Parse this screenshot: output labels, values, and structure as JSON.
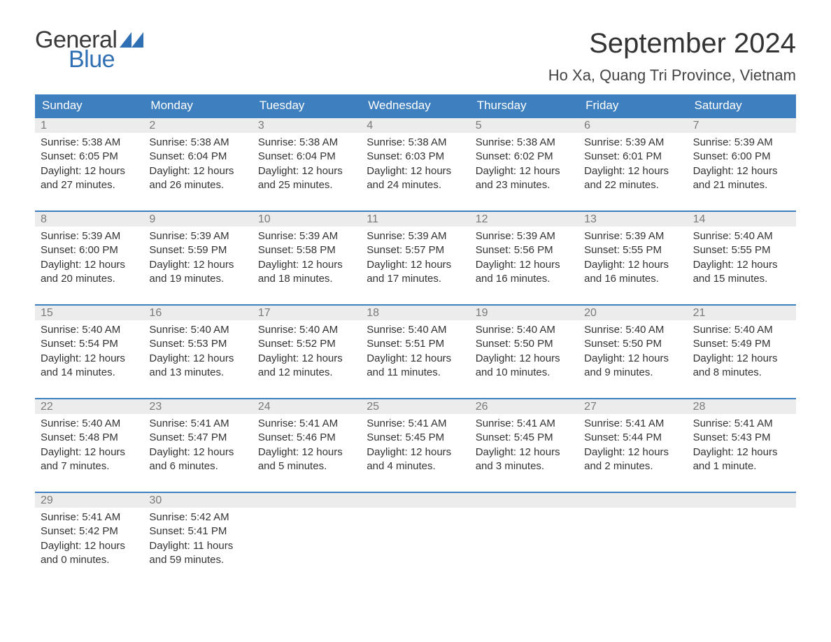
{
  "logo": {
    "text1": "General",
    "text2": "Blue",
    "flag_color": "#2f6fb3"
  },
  "header": {
    "title": "September 2024",
    "location": "Ho Xa, Quang Tri Province, Vietnam"
  },
  "colors": {
    "header_bg": "#3e7fbf",
    "daynum_bg": "#ececec",
    "week_border": "#3e7fbf",
    "text": "#333333",
    "daynum_text": "#7a7a7a"
  },
  "days_of_week": [
    "Sunday",
    "Monday",
    "Tuesday",
    "Wednesday",
    "Thursday",
    "Friday",
    "Saturday"
  ],
  "weeks": [
    [
      {
        "n": "1",
        "sunrise": "5:38 AM",
        "sunset": "6:05 PM",
        "dl": "12 hours and 27 minutes."
      },
      {
        "n": "2",
        "sunrise": "5:38 AM",
        "sunset": "6:04 PM",
        "dl": "12 hours and 26 minutes."
      },
      {
        "n": "3",
        "sunrise": "5:38 AM",
        "sunset": "6:04 PM",
        "dl": "12 hours and 25 minutes."
      },
      {
        "n": "4",
        "sunrise": "5:38 AM",
        "sunset": "6:03 PM",
        "dl": "12 hours and 24 minutes."
      },
      {
        "n": "5",
        "sunrise": "5:38 AM",
        "sunset": "6:02 PM",
        "dl": "12 hours and 23 minutes."
      },
      {
        "n": "6",
        "sunrise": "5:39 AM",
        "sunset": "6:01 PM",
        "dl": "12 hours and 22 minutes."
      },
      {
        "n": "7",
        "sunrise": "5:39 AM",
        "sunset": "6:00 PM",
        "dl": "12 hours and 21 minutes."
      }
    ],
    [
      {
        "n": "8",
        "sunrise": "5:39 AM",
        "sunset": "6:00 PM",
        "dl": "12 hours and 20 minutes."
      },
      {
        "n": "9",
        "sunrise": "5:39 AM",
        "sunset": "5:59 PM",
        "dl": "12 hours and 19 minutes."
      },
      {
        "n": "10",
        "sunrise": "5:39 AM",
        "sunset": "5:58 PM",
        "dl": "12 hours and 18 minutes."
      },
      {
        "n": "11",
        "sunrise": "5:39 AM",
        "sunset": "5:57 PM",
        "dl": "12 hours and 17 minutes."
      },
      {
        "n": "12",
        "sunrise": "5:39 AM",
        "sunset": "5:56 PM",
        "dl": "12 hours and 16 minutes."
      },
      {
        "n": "13",
        "sunrise": "5:39 AM",
        "sunset": "5:55 PM",
        "dl": "12 hours and 16 minutes."
      },
      {
        "n": "14",
        "sunrise": "5:40 AM",
        "sunset": "5:55 PM",
        "dl": "12 hours and 15 minutes."
      }
    ],
    [
      {
        "n": "15",
        "sunrise": "5:40 AM",
        "sunset": "5:54 PM",
        "dl": "12 hours and 14 minutes."
      },
      {
        "n": "16",
        "sunrise": "5:40 AM",
        "sunset": "5:53 PM",
        "dl": "12 hours and 13 minutes."
      },
      {
        "n": "17",
        "sunrise": "5:40 AM",
        "sunset": "5:52 PM",
        "dl": "12 hours and 12 minutes."
      },
      {
        "n": "18",
        "sunrise": "5:40 AM",
        "sunset": "5:51 PM",
        "dl": "12 hours and 11 minutes."
      },
      {
        "n": "19",
        "sunrise": "5:40 AM",
        "sunset": "5:50 PM",
        "dl": "12 hours and 10 minutes."
      },
      {
        "n": "20",
        "sunrise": "5:40 AM",
        "sunset": "5:50 PM",
        "dl": "12 hours and 9 minutes."
      },
      {
        "n": "21",
        "sunrise": "5:40 AM",
        "sunset": "5:49 PM",
        "dl": "12 hours and 8 minutes."
      }
    ],
    [
      {
        "n": "22",
        "sunrise": "5:40 AM",
        "sunset": "5:48 PM",
        "dl": "12 hours and 7 minutes."
      },
      {
        "n": "23",
        "sunrise": "5:41 AM",
        "sunset": "5:47 PM",
        "dl": "12 hours and 6 minutes."
      },
      {
        "n": "24",
        "sunrise": "5:41 AM",
        "sunset": "5:46 PM",
        "dl": "12 hours and 5 minutes."
      },
      {
        "n": "25",
        "sunrise": "5:41 AM",
        "sunset": "5:45 PM",
        "dl": "12 hours and 4 minutes."
      },
      {
        "n": "26",
        "sunrise": "5:41 AM",
        "sunset": "5:45 PM",
        "dl": "12 hours and 3 minutes."
      },
      {
        "n": "27",
        "sunrise": "5:41 AM",
        "sunset": "5:44 PM",
        "dl": "12 hours and 2 minutes."
      },
      {
        "n": "28",
        "sunrise": "5:41 AM",
        "sunset": "5:43 PM",
        "dl": "12 hours and 1 minute."
      }
    ],
    [
      {
        "n": "29",
        "sunrise": "5:41 AM",
        "sunset": "5:42 PM",
        "dl": "12 hours and 0 minutes."
      },
      {
        "n": "30",
        "sunrise": "5:42 AM",
        "sunset": "5:41 PM",
        "dl": "11 hours and 59 minutes."
      },
      null,
      null,
      null,
      null,
      null
    ]
  ],
  "labels": {
    "sunrise": "Sunrise:",
    "sunset": "Sunset:",
    "daylight": "Daylight:"
  }
}
